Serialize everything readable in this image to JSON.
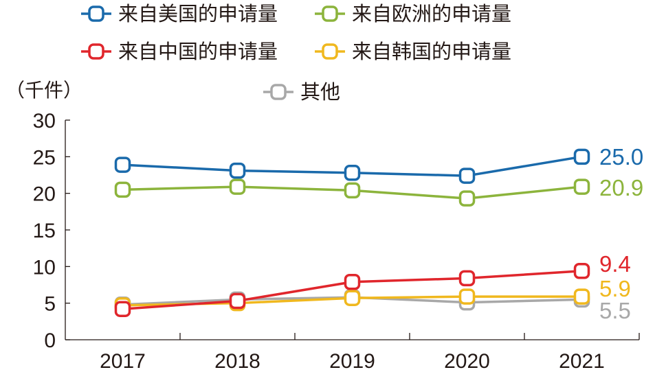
{
  "chart_data": {
    "type": "line",
    "title": "",
    "xlabel": "",
    "ylabel": "（千件）",
    "x": [
      2017,
      2018,
      2019,
      2020,
      2021
    ],
    "ylim": [
      0,
      30
    ],
    "yticks": [
      0,
      5,
      10,
      15,
      20,
      25,
      30
    ],
    "grid": false,
    "legend_position": "top",
    "series": [
      {
        "name": "来自美国的申请量",
        "color": "#1a6aab",
        "values": [
          23.9,
          23.1,
          22.8,
          22.4,
          25.0
        ],
        "end_label": "25.0"
      },
      {
        "name": "来自欧洲的申请量",
        "color": "#8cb43c",
        "values": [
          20.5,
          20.9,
          20.4,
          19.3,
          20.9
        ],
        "end_label": "20.9"
      },
      {
        "name": "来自中国的申请量",
        "color": "#e0262c",
        "values": [
          4.2,
          5.3,
          7.9,
          8.4,
          9.4
        ],
        "end_label": "9.4"
      },
      {
        "name": "来自韩国的申请量",
        "color": "#f0b81e",
        "values": [
          4.7,
          5.0,
          5.7,
          5.9,
          5.9
        ],
        "end_label": "5.9"
      },
      {
        "name": "其他",
        "color": "#a8a8a8",
        "values": [
          4.8,
          5.5,
          5.8,
          5.1,
          5.5
        ],
        "end_label": "5.5"
      }
    ]
  }
}
